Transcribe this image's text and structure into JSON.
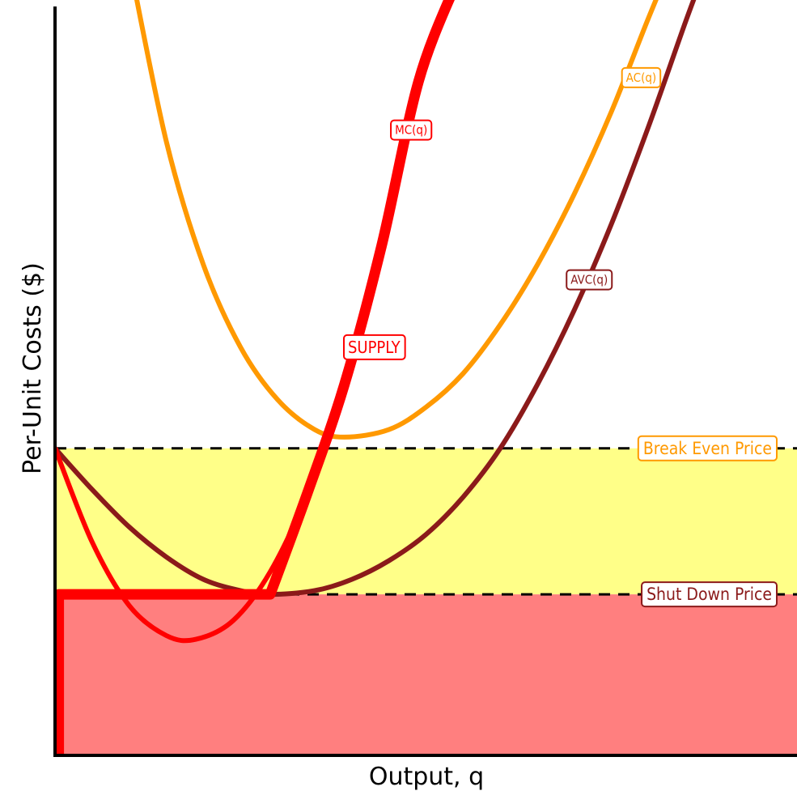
{
  "chart_data": {
    "type": "line",
    "title": "",
    "xlabel": "Output, q",
    "ylabel": "Per-Unit Costs ($)",
    "x_range": [
      0,
      10
    ],
    "y_range": [
      0,
      10
    ],
    "grid": false,
    "legend": "none",
    "series": [
      {
        "name": "MC(q)",
        "color": "#ff0000",
        "x": [
          0,
          0.5,
          1,
          1.5,
          1.9,
          2.4,
          2.9,
          3.4,
          3.9,
          4.4,
          4.9,
          5.45
        ],
        "y": [
          4.1,
          2.85,
          2.0,
          1.6,
          1.55,
          1.8,
          2.45,
          3.5,
          4.95,
          6.8,
          9.0,
          10.4
        ]
      },
      {
        "name": "AVC(q)",
        "color": "#8b1a1a",
        "x": [
          0,
          0.5,
          1,
          1.5,
          2,
          2.5,
          2.9,
          3.5,
          4,
          4.5,
          5,
          5.5,
          6,
          6.5,
          7,
          7.5,
          8,
          8.5,
          8.8
        ],
        "y": [
          4.1,
          3.55,
          3.05,
          2.65,
          2.35,
          2.2,
          2.15,
          2.2,
          2.35,
          2.6,
          2.95,
          3.45,
          4.1,
          4.95,
          5.95,
          7.1,
          8.4,
          9.8,
          10.6
        ]
      },
      {
        "name": "AC(q)",
        "color": "#ff9900",
        "x": [
          1.0,
          1.5,
          2,
          2.5,
          3,
          3.5,
          3.9,
          4.5,
          5,
          5.5,
          6,
          6.5,
          7,
          7.5,
          8,
          8.4
        ],
        "y": [
          10.6,
          8.2,
          6.55,
          5.45,
          4.75,
          4.35,
          4.25,
          4.35,
          4.65,
          5.1,
          5.75,
          6.55,
          7.5,
          8.6,
          9.85,
          10.8
        ]
      },
      {
        "name": "SUPPLY",
        "color": "#ff0000",
        "x": [
          0.05,
          0.05,
          2.9,
          3.4,
          3.9,
          4.4,
          4.9,
          5.4
        ],
        "y": [
          0,
          2.15,
          2.15,
          3.5,
          4.95,
          6.8,
          9.0,
          10.3
        ]
      }
    ],
    "reference_lines": [
      {
        "name": "Break Even Price",
        "y": 4.1,
        "color": "#ff9900"
      },
      {
        "name": "Shut Down Price",
        "y": 2.15,
        "color": "#8b1a1a"
      }
    ],
    "shaded_regions": [
      {
        "y_from": 2.15,
        "y_to": 4.1,
        "color": "#ffff88"
      },
      {
        "y_from": 0,
        "y_to": 2.15,
        "color": "#ff7f7f"
      }
    ],
    "annotations": [
      {
        "text": "MC(q)",
        "x": 4.8,
        "y": 8.35,
        "color": "#ff0000"
      },
      {
        "text": "AC(q)",
        "x": 7.9,
        "y": 9.05,
        "color": "#ff9900"
      },
      {
        "text": "AVC(q)",
        "x": 7.2,
        "y": 6.35,
        "color": "#8b1a1a"
      },
      {
        "text": "SUPPLY",
        "x": 4.3,
        "y": 5.45,
        "color": "#ff0000"
      }
    ]
  }
}
